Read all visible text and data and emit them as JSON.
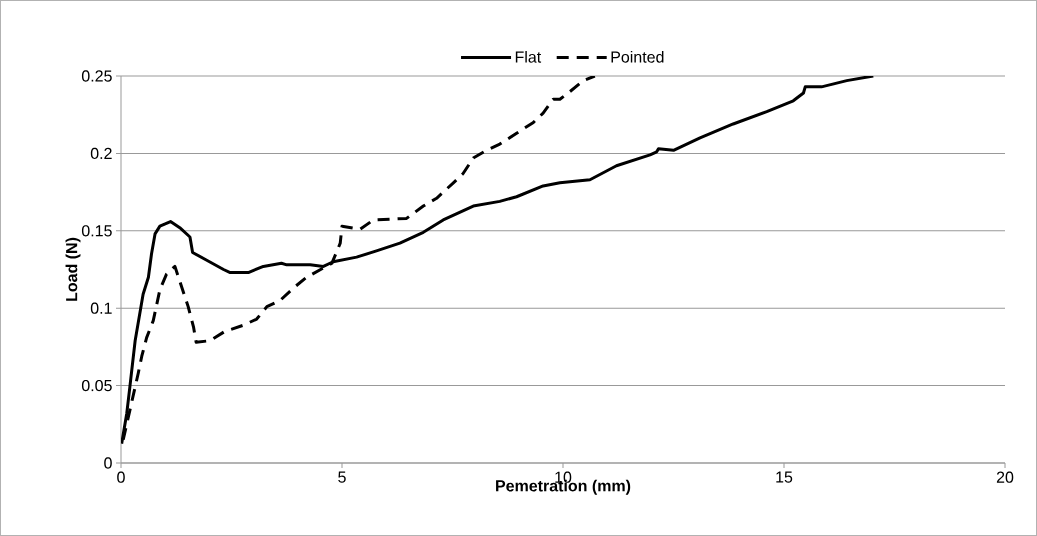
{
  "chart_data": {
    "type": "line",
    "xlabel": "Pemetration (mm)",
    "ylabel": "Load (N)",
    "xlim": [
      0,
      20
    ],
    "ylim": [
      0,
      0.25
    ],
    "xticks": [
      0,
      5,
      10,
      15,
      20
    ],
    "yticks": [
      0,
      0.05,
      0.1,
      0.15,
      0.2,
      0.25
    ],
    "grid": "y",
    "legend": "top",
    "marker": "none",
    "series": [
      {
        "name": "Flat",
        "color": "#000000",
        "line_style": "solid",
        "x": [
          0.015,
          0.13,
          0.2,
          0.32,
          0.5,
          0.62,
          0.69,
          0.77,
          0.88,
          1.12,
          1.33,
          1.56,
          1.62,
          1.94,
          2.32,
          2.47,
          2.88,
          3.22,
          3.63,
          3.75,
          4.28,
          4.58,
          4.8,
          5.33,
          5.78,
          6.31,
          6.84,
          7.29,
          7.97,
          8.57,
          8.95,
          9.55,
          9.93,
          10.61,
          11.21,
          11.97,
          12.12,
          12.16,
          12.5,
          13.1,
          13.85,
          14.61,
          15.21,
          15.44,
          15.48,
          15.85,
          16.42,
          17.02
        ],
        "values": [
          0.0125,
          0.032,
          0.049,
          0.079,
          0.109,
          0.12,
          0.135,
          0.148,
          0.153,
          0.156,
          0.152,
          0.146,
          0.136,
          0.131,
          0.125,
          0.123,
          0.123,
          0.127,
          0.129,
          0.128,
          0.128,
          0.127,
          0.13,
          0.133,
          0.137,
          0.142,
          0.149,
          0.157,
          0.166,
          0.169,
          0.172,
          0.179,
          0.181,
          0.183,
          0.192,
          0.199,
          0.201,
          0.203,
          0.202,
          0.21,
          0.219,
          0.227,
          0.234,
          0.239,
          0.243,
          0.243,
          0.247,
          0.25
        ]
      },
      {
        "name": "Pointed",
        "color": "#000000",
        "line_style": "dashed",
        "x": [
          0.05,
          0.39,
          0.47,
          0.58,
          0.73,
          0.88,
          1.03,
          1.22,
          1.3,
          1.52,
          1.64,
          1.7,
          2.01,
          2.35,
          2.77,
          3.07,
          3.3,
          3.6,
          3.9,
          4.2,
          4.77,
          4.96,
          5.0,
          5.41,
          5.71,
          6.46,
          6.84,
          7.14,
          7.52,
          7.74,
          7.97,
          8.27,
          8.57,
          8.95,
          9.33,
          9.55,
          9.78,
          9.93,
          10.16,
          10.46,
          10.72
        ],
        "values": [
          0.015,
          0.058,
          0.069,
          0.081,
          0.092,
          0.112,
          0.122,
          0.127,
          0.12,
          0.101,
          0.088,
          0.078,
          0.079,
          0.085,
          0.089,
          0.093,
          0.101,
          0.105,
          0.113,
          0.12,
          0.129,
          0.142,
          0.153,
          0.151,
          0.157,
          0.158,
          0.166,
          0.171,
          0.181,
          0.187,
          0.197,
          0.202,
          0.206,
          0.213,
          0.22,
          0.226,
          0.235,
          0.235,
          0.24,
          0.247,
          0.25
        ]
      }
    ]
  }
}
